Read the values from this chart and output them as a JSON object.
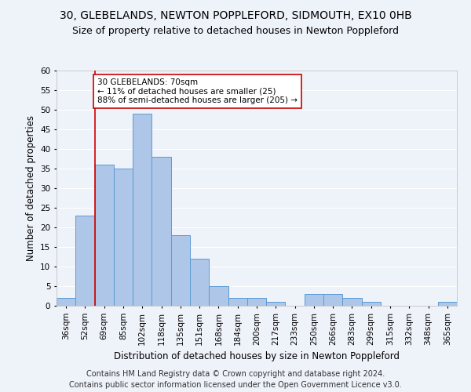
{
  "title1": "30, GLEBELANDS, NEWTON POPPLEFORD, SIDMOUTH, EX10 0HB",
  "title2": "Size of property relative to detached houses in Newton Poppleford",
  "xlabel": "Distribution of detached houses by size in Newton Poppleford",
  "ylabel": "Number of detached properties",
  "footnote1": "Contains HM Land Registry data © Crown copyright and database right 2024.",
  "footnote2": "Contains public sector information licensed under the Open Government Licence v3.0.",
  "categories": [
    "36sqm",
    "52sqm",
    "69sqm",
    "85sqm",
    "102sqm",
    "118sqm",
    "135sqm",
    "151sqm",
    "168sqm",
    "184sqm",
    "200sqm",
    "217sqm",
    "233sqm",
    "250sqm",
    "266sqm",
    "283sqm",
    "299sqm",
    "315sqm",
    "332sqm",
    "348sqm",
    "365sqm"
  ],
  "values": [
    2,
    23,
    36,
    35,
    49,
    38,
    18,
    12,
    5,
    2,
    2,
    1,
    0,
    3,
    3,
    2,
    1,
    0,
    0,
    0,
    1
  ],
  "bar_color": "#aec6e8",
  "bar_edge_color": "#5b9bd5",
  "subject_line_color": "#cc0000",
  "annotation_text": "30 GLEBELANDS: 70sqm\n← 11% of detached houses are smaller (25)\n88% of semi-detached houses are larger (205) →",
  "annotation_box_color": "#cc0000",
  "ylim": [
    0,
    60
  ],
  "yticks": [
    0,
    5,
    10,
    15,
    20,
    25,
    30,
    35,
    40,
    45,
    50,
    55,
    60
  ],
  "background_color": "#eef2f9",
  "grid_color": "#ffffff",
  "title1_fontsize": 10,
  "title2_fontsize": 9,
  "xlabel_fontsize": 8.5,
  "ylabel_fontsize": 8.5,
  "tick_fontsize": 7.5,
  "footnote_fontsize": 7,
  "annotation_fontsize": 7.5
}
